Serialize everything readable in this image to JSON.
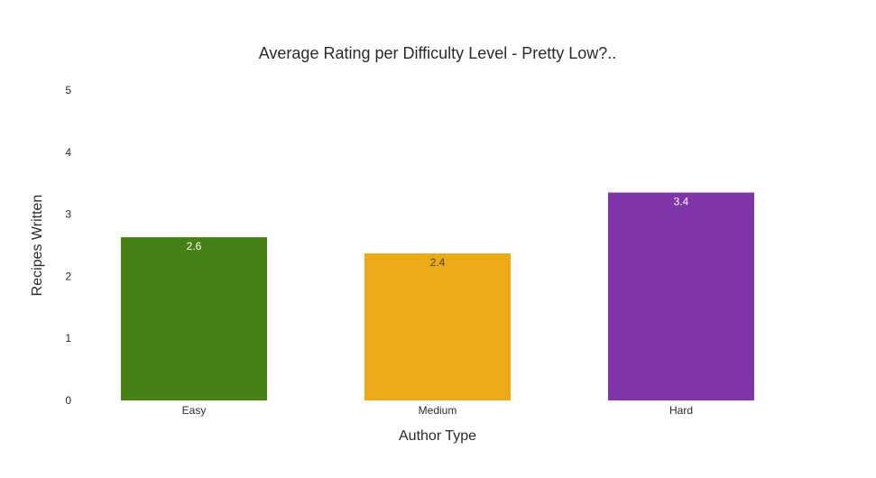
{
  "chart_data": {
    "type": "bar",
    "title": "Average Rating per Difficulty Level - Pretty Low?..",
    "xlabel": "Author Type",
    "ylabel": "Recipes Written",
    "categories": [
      "Easy",
      "Medium",
      "Hard"
    ],
    "values": [
      2.63,
      2.37,
      3.35
    ],
    "value_labels": [
      "2.6",
      "2.4",
      "3.4"
    ],
    "bar_colors": [
      "#478115",
      "#edaa18",
      "#7f34a8"
    ],
    "label_colors": [
      "#ffffff",
      "#444444",
      "#ffffff"
    ],
    "ylim": [
      0,
      5
    ],
    "yticks": [
      0,
      1,
      2,
      3,
      4,
      5
    ],
    "grid": false,
    "legend": "none"
  }
}
